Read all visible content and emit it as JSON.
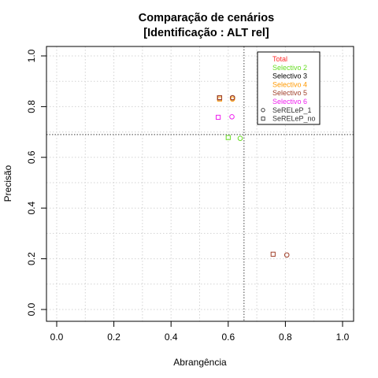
{
  "chart_data": {
    "type": "scatter",
    "title_line1": "Comparação de cenários",
    "title_line2": "[Identificação : ALT rel]",
    "xlabel": "Abrangência",
    "ylabel": "Precisão",
    "xlim": [
      0,
      1
    ],
    "ylim": [
      0,
      1
    ],
    "x_ticks": [
      "0.0",
      "0.2",
      "0.4",
      "0.6",
      "0.8",
      "1.0"
    ],
    "y_ticks": [
      "0.0",
      "0.2",
      "0.4",
      "0.6",
      "0.8",
      "1.0"
    ],
    "grid": true,
    "legend_position": "top-right",
    "reference_lines": {
      "x": 0.655,
      "y": 0.69
    },
    "legend": [
      {
        "label": "Total",
        "color": "#ff2a2a",
        "marker": "none"
      },
      {
        "label": "Selectivo 2",
        "color": "#66dd22",
        "marker": "none"
      },
      {
        "label": "Selectivo 3",
        "color": "#000000",
        "marker": "none"
      },
      {
        "label": "Selectivo 4",
        "color": "#ff9900",
        "marker": "none"
      },
      {
        "label": "Selectivo 5",
        "color": "#a0402a",
        "marker": "none"
      },
      {
        "label": "Selectivo 6",
        "color": "#ee22ee",
        "marker": "none"
      },
      {
        "label": "SeRELeP_1",
        "color": "#333333",
        "marker": "circle"
      },
      {
        "label": "SeRELeP_no",
        "color": "#333333",
        "marker": "square"
      }
    ],
    "series": [
      {
        "name": "Total",
        "color": "#ff2a2a",
        "points": [
          {
            "x": 0.615,
            "y": 0.835,
            "marker": "circle"
          },
          {
            "x": 0.57,
            "y": 0.835,
            "marker": "square"
          }
        ]
      },
      {
        "name": "Selectivo 2",
        "color": "#66dd22",
        "points": [
          {
            "x": 0.642,
            "y": 0.675,
            "marker": "circle"
          },
          {
            "x": 0.6,
            "y": 0.678,
            "marker": "square"
          }
        ]
      },
      {
        "name": "Selectivo 3",
        "color": "#000000",
        "points": [
          {
            "x": 0.615,
            "y": 0.835,
            "marker": "circle"
          },
          {
            "x": 0.57,
            "y": 0.835,
            "marker": "square"
          }
        ]
      },
      {
        "name": "Selectivo 4",
        "color": "#ff9900",
        "points": [
          {
            "x": 0.615,
            "y": 0.83,
            "marker": "circle"
          },
          {
            "x": 0.57,
            "y": 0.83,
            "marker": "square"
          }
        ]
      },
      {
        "name": "Selectivo 5",
        "color": "#a0402a",
        "points": [
          {
            "x": 0.615,
            "y": 0.835,
            "marker": "circle"
          },
          {
            "x": 0.57,
            "y": 0.835,
            "marker": "square"
          },
          {
            "x": 0.805,
            "y": 0.215,
            "marker": "circle"
          },
          {
            "x": 0.757,
            "y": 0.218,
            "marker": "square"
          }
        ]
      },
      {
        "name": "Selectivo 6",
        "color": "#ee22ee",
        "points": [
          {
            "x": 0.613,
            "y": 0.76,
            "marker": "circle"
          },
          {
            "x": 0.565,
            "y": 0.758,
            "marker": "square"
          }
        ]
      }
    ]
  }
}
